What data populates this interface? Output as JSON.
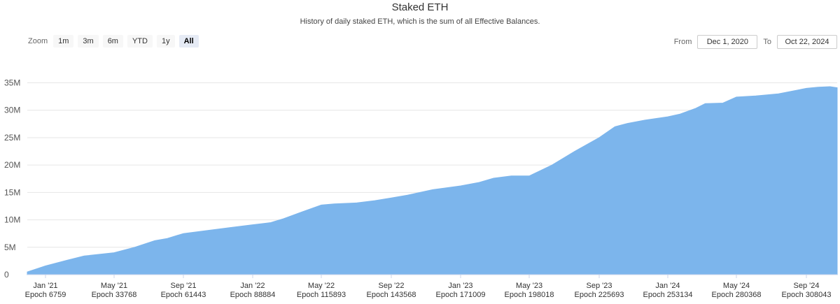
{
  "title": "Staked ETH",
  "subtitle": "History of daily staked ETH, which is the sum of all Effective Balances.",
  "zoom": {
    "label": "Zoom",
    "buttons": [
      "1m",
      "3m",
      "6m",
      "YTD",
      "1y",
      "All"
    ],
    "active": "All"
  },
  "range": {
    "from_label": "From",
    "from_value": "Dec 1, 2020",
    "to_label": "To",
    "to_value": "Oct 22, 2024"
  },
  "colors": {
    "area": "#7cb5ec",
    "grid": "#e6e6e6"
  },
  "chart_data": {
    "type": "area",
    "title": "Staked ETH",
    "subtitle": "History of daily staked ETH, which is the sum of all Effective Balances.",
    "y_ticks": [
      "0",
      "5M",
      "10M",
      "15M",
      "20M",
      "25M",
      "30M",
      "35M"
    ],
    "ylim": [
      0,
      38000000
    ],
    "x_ticks": [
      {
        "month": "Jan '21",
        "epoch": "Epoch 6759"
      },
      {
        "month": "May '21",
        "epoch": "Epoch 33768"
      },
      {
        "month": "Sep '21",
        "epoch": "Epoch 61443"
      },
      {
        "month": "Jan '22",
        "epoch": "Epoch 88884"
      },
      {
        "month": "May '22",
        "epoch": "Epoch 115893"
      },
      {
        "month": "Sep '22",
        "epoch": "Epoch 143568"
      },
      {
        "month": "Jan '23",
        "epoch": "Epoch 171009"
      },
      {
        "month": "May '23",
        "epoch": "Epoch 198018"
      },
      {
        "month": "Sep '23",
        "epoch": "Epoch 225693"
      },
      {
        "month": "Jan '24",
        "epoch": "Epoch 253134"
      },
      {
        "month": "May '24",
        "epoch": "Epoch 280368"
      },
      {
        "month": "Sep '24",
        "epoch": "Epoch 308043"
      }
    ],
    "xlim": [
      0,
      327000
    ],
    "x_axis_note": "x values are epochs",
    "series": [
      {
        "values": [
          [
            0,
            0.5
          ],
          [
            6759,
            1.6
          ],
          [
            15000,
            2.6
          ],
          [
            22000,
            3.4
          ],
          [
            33768,
            4.0
          ],
          [
            42000,
            5.0
          ],
          [
            50000,
            6.2
          ],
          [
            55000,
            6.6
          ],
          [
            61443,
            7.5
          ],
          [
            70000,
            8.0
          ],
          [
            80000,
            8.6
          ],
          [
            88884,
            9.1
          ],
          [
            96000,
            9.5
          ],
          [
            101000,
            10.2
          ],
          [
            108000,
            11.4
          ],
          [
            115893,
            12.7
          ],
          [
            121000,
            12.9
          ],
          [
            130000,
            13.1
          ],
          [
            137000,
            13.5
          ],
          [
            143568,
            14.0
          ],
          [
            150000,
            14.5
          ],
          [
            160000,
            15.5
          ],
          [
            171009,
            16.2
          ],
          [
            178000,
            16.8
          ],
          [
            184000,
            17.6
          ],
          [
            191000,
            18.0
          ],
          [
            198018,
            18.0
          ],
          [
            207000,
            20.0
          ],
          [
            216000,
            22.5
          ],
          [
            225693,
            25.0
          ],
          [
            232000,
            27.0
          ],
          [
            237000,
            27.6
          ],
          [
            244000,
            28.2
          ],
          [
            253134,
            28.8
          ],
          [
            258000,
            29.3
          ],
          [
            264000,
            30.3
          ],
          [
            268000,
            31.2
          ],
          [
            275000,
            31.3
          ],
          [
            280368,
            32.4
          ],
          [
            288000,
            32.6
          ],
          [
            297000,
            33.0
          ],
          [
            308043,
            34.0
          ],
          [
            313000,
            34.2
          ],
          [
            318000,
            34.3
          ],
          [
            321000,
            34.1
          ]
        ]
      }
    ]
  }
}
